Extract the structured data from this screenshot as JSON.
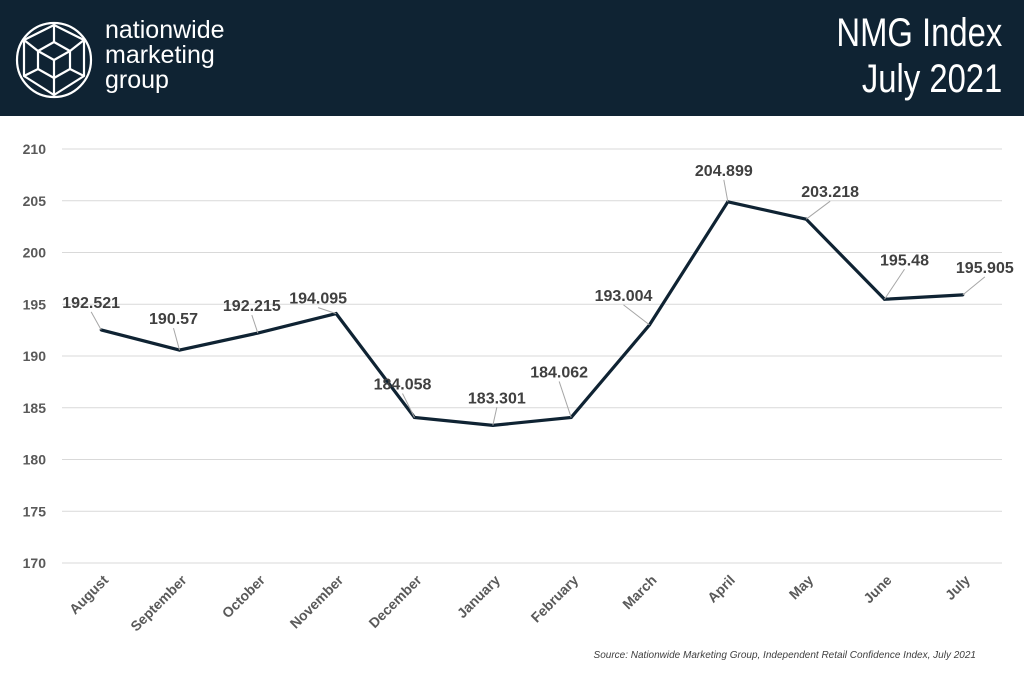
{
  "header": {
    "brand_lines": [
      "nationwide",
      "marketing",
      "group"
    ],
    "logo_icon": "geodesic-sphere-icon",
    "title_line1": "NMG Index",
    "title_line2": "July 2021",
    "background_color": "#0f2333"
  },
  "chart_data": {
    "type": "line",
    "categories": [
      "August",
      "September",
      "October",
      "November",
      "December",
      "January",
      "February",
      "March",
      "April",
      "May",
      "June",
      "July"
    ],
    "series": [
      {
        "values": [
          192.521,
          190.57,
          192.215,
          194.095,
          184.058,
          183.301,
          184.062,
          193.004,
          204.899,
          203.218,
          195.48,
          195.905
        ],
        "data_labels": [
          "192.521",
          "190.57",
          "192.215",
          "194.095",
          "184.058",
          "183.301",
          "184.062",
          "193.004",
          "204.899",
          "203.218",
          "195.48",
          "195.905"
        ],
        "color": "#0f2333"
      }
    ],
    "yticks": [
      "170",
      "175",
      "180",
      "185",
      "190",
      "195",
      "200",
      "205",
      "210"
    ],
    "ylim": [
      170,
      210
    ],
    "grid": true,
    "title": "",
    "xlabel": "",
    "ylabel": ""
  },
  "source_note": "Source: Nationwide Marketing Group, Independent Retail Confidence Index, July 2021"
}
